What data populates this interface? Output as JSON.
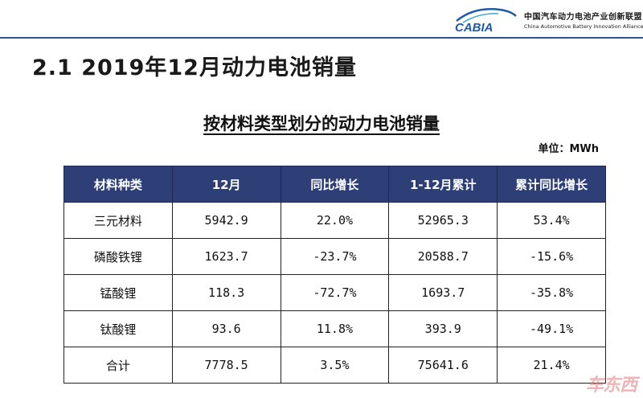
{
  "header": {
    "logo_mark_text": "CABIA",
    "org_name_cn": "中国汽车动力电池产业创新联盟",
    "org_name_en": "China Automotive Battery Innovation Alliance"
  },
  "slide_title": "2.1  2019年12月动力电池销量",
  "table_title": "按材料类型划分的动力电池销量",
  "unit": "单位：MWh",
  "table": {
    "headers": [
      "材料种类",
      "12月",
      "同比增长",
      "1-12月累计",
      "累计同比增长"
    ],
    "rows": [
      [
        "三元材料",
        "5942.9",
        "22.0%",
        "52965.3",
        "53.4%"
      ],
      [
        "磷酸铁锂",
        "1623.7",
        "-23.7%",
        "20588.7",
        "-15.6%"
      ],
      [
        "锰酸锂",
        "118.3",
        "-72.7%",
        "1693.7",
        "-35.8%"
      ],
      [
        "钛酸锂",
        "93.6",
        "11.8%",
        "393.9",
        "-49.1%"
      ],
      [
        "合计",
        "7778.5",
        "3.5%",
        "75641.6",
        "21.4%"
      ]
    ]
  },
  "watermark": "车东西",
  "colors": {
    "header_bg": "#2e3f78",
    "accent_line": "#2f4f93",
    "logo_blue": "#1e5aa8"
  }
}
